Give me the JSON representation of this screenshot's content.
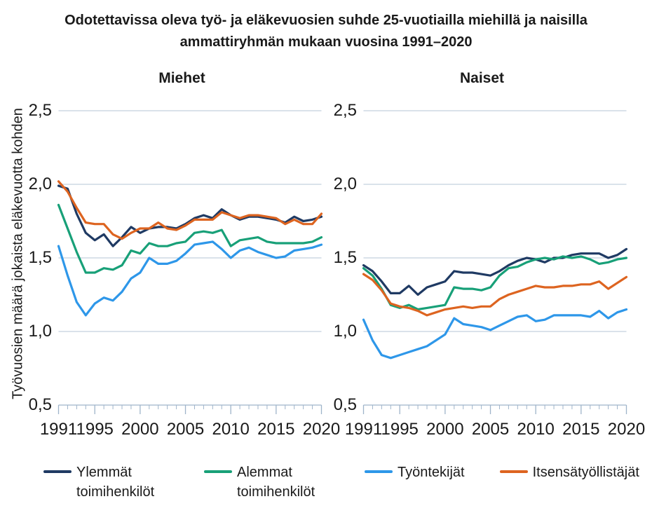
{
  "title": {
    "line1": "Odotettavissa oleva työ- ja eläkevuosien suhde 25-vuotiailla miehillä ja naisilla",
    "line2": "ammattiryhmän mukaan vuosina 1991–2020"
  },
  "y_axis_label": "Työvuosien määrä jokaista eläkevuotta kohden",
  "colors": {
    "navy": "#1f3a63",
    "teal_green": "#18a078",
    "light_blue": "#2e97e9",
    "orange": "#dd6420",
    "gridline": "#b5c4d6",
    "axis": "#9fb4ca",
    "text": "#1a1a1a",
    "background": "#ffffff"
  },
  "chart_data": {
    "type": "line",
    "x_years": [
      1991,
      1992,
      1993,
      1994,
      1995,
      1996,
      1997,
      1998,
      1999,
      2000,
      2001,
      2002,
      2003,
      2004,
      2005,
      2006,
      2007,
      2008,
      2009,
      2010,
      2011,
      2012,
      2013,
      2014,
      2015,
      2016,
      2017,
      2018,
      2019,
      2020
    ],
    "x_tick_labels": [
      {
        "year": 1991,
        "label": "1991"
      },
      {
        "year": 1995,
        "label": "1995"
      },
      {
        "year": 2000,
        "label": "2000"
      },
      {
        "year": 2005,
        "label": "2005"
      },
      {
        "year": 2010,
        "label": "2010"
      },
      {
        "year": 2015,
        "label": "2015"
      },
      {
        "year": 2020,
        "label": "2020"
      }
    ],
    "y_ticks": [
      {
        "value": 2.5,
        "label": "2,5"
      },
      {
        "value": 2.0,
        "label": "2,0"
      },
      {
        "value": 1.5,
        "label": "1,5"
      },
      {
        "value": 1.0,
        "label": "1,0"
      },
      {
        "value": 0.5,
        "label": "0,5"
      }
    ],
    "ylim": [
      0.5,
      2.5
    ],
    "grid": "horizontal gridlines at 1,0 1,5 2,0 2,5",
    "legend_position": "bottom",
    "panels": [
      {
        "title": "Miehet",
        "series": [
          {
            "name": "Ylemmät toimihenkilöt",
            "color": "#1f3a63",
            "values": [
              1.99,
              1.97,
              1.8,
              1.67,
              1.62,
              1.66,
              1.58,
              1.64,
              1.71,
              1.67,
              1.7,
              1.71,
              1.71,
              1.7,
              1.73,
              1.77,
              1.79,
              1.77,
              1.83,
              1.79,
              1.76,
              1.78,
              1.78,
              1.77,
              1.76,
              1.74,
              1.78,
              1.75,
              1.76,
              1.78
            ]
          },
          {
            "name": "Alemmat toimihenkilöt",
            "color": "#18a078",
            "values": [
              1.86,
              1.7,
              1.54,
              1.4,
              1.4,
              1.43,
              1.42,
              1.45,
              1.55,
              1.53,
              1.6,
              1.58,
              1.58,
              1.6,
              1.61,
              1.67,
              1.68,
              1.67,
              1.69,
              1.58,
              1.62,
              1.63,
              1.64,
              1.61,
              1.6,
              1.6,
              1.6,
              1.6,
              1.61,
              1.64
            ]
          },
          {
            "name": "Työntekijät",
            "color": "#2e97e9",
            "values": [
              1.58,
              1.38,
              1.2,
              1.11,
              1.19,
              1.23,
              1.21,
              1.27,
              1.36,
              1.4,
              1.5,
              1.46,
              1.46,
              1.48,
              1.53,
              1.59,
              1.6,
              1.61,
              1.56,
              1.5,
              1.55,
              1.57,
              1.54,
              1.52,
              1.5,
              1.51,
              1.55,
              1.56,
              1.57,
              1.59
            ]
          },
          {
            "name": "Itsensätyöllistäjät",
            "color": "#dd6420",
            "values": [
              2.02,
              1.95,
              1.84,
              1.74,
              1.73,
              1.73,
              1.66,
              1.63,
              1.67,
              1.7,
              1.7,
              1.74,
              1.7,
              1.69,
              1.72,
              1.76,
              1.76,
              1.76,
              1.81,
              1.79,
              1.77,
              1.79,
              1.79,
              1.78,
              1.77,
              1.73,
              1.76,
              1.73,
              1.73,
              1.8
            ]
          }
        ]
      },
      {
        "title": "Naiset",
        "series": [
          {
            "name": "Ylemmät toimihenkilöt",
            "color": "#1f3a63",
            "values": [
              1.45,
              1.41,
              1.34,
              1.26,
              1.26,
              1.31,
              1.25,
              1.3,
              1.32,
              1.34,
              1.41,
              1.4,
              1.4,
              1.39,
              1.38,
              1.41,
              1.45,
              1.48,
              1.5,
              1.49,
              1.47,
              1.5,
              1.5,
              1.52,
              1.53,
              1.53,
              1.53,
              1.5,
              1.52,
              1.56
            ]
          },
          {
            "name": "Alemmat toimihenkilöt",
            "color": "#18a078",
            "values": [
              1.43,
              1.38,
              1.29,
              1.18,
              1.16,
              1.18,
              1.15,
              1.16,
              1.17,
              1.18,
              1.3,
              1.29,
              1.29,
              1.28,
              1.3,
              1.38,
              1.43,
              1.44,
              1.47,
              1.49,
              1.5,
              1.49,
              1.51,
              1.5,
              1.51,
              1.49,
              1.46,
              1.47,
              1.49,
              1.5
            ]
          },
          {
            "name": "Työntekijät",
            "color": "#2e97e9",
            "values": [
              1.08,
              0.94,
              0.84,
              0.82,
              0.84,
              0.86,
              0.88,
              0.9,
              0.94,
              0.98,
              1.09,
              1.05,
              1.04,
              1.03,
              1.01,
              1.04,
              1.07,
              1.1,
              1.11,
              1.07,
              1.08,
              1.11,
              1.11,
              1.11,
              1.11,
              1.1,
              1.14,
              1.09,
              1.13,
              1.15
            ]
          },
          {
            "name": "Itsensätyöllistäjät",
            "color": "#dd6420",
            "values": [
              1.39,
              1.35,
              1.28,
              1.19,
              1.17,
              1.16,
              1.14,
              1.11,
              1.13,
              1.15,
              1.16,
              1.17,
              1.16,
              1.17,
              1.17,
              1.22,
              1.25,
              1.27,
              1.29,
              1.31,
              1.3,
              1.3,
              1.31,
              1.31,
              1.32,
              1.32,
              1.34,
              1.29,
              1.33,
              1.37
            ]
          }
        ]
      }
    ],
    "legend": [
      {
        "label": "Ylemmät toimihenkilöt",
        "color": "#1f3a63",
        "wrap": true
      },
      {
        "label": "Alemmat toimihenkilöt",
        "color": "#18a078",
        "wrap": true
      },
      {
        "label": "Työntekijät",
        "color": "#2e97e9",
        "wrap": false
      },
      {
        "label": "Itsensätyöllistäjät",
        "color": "#dd6420",
        "wrap": false
      }
    ]
  }
}
